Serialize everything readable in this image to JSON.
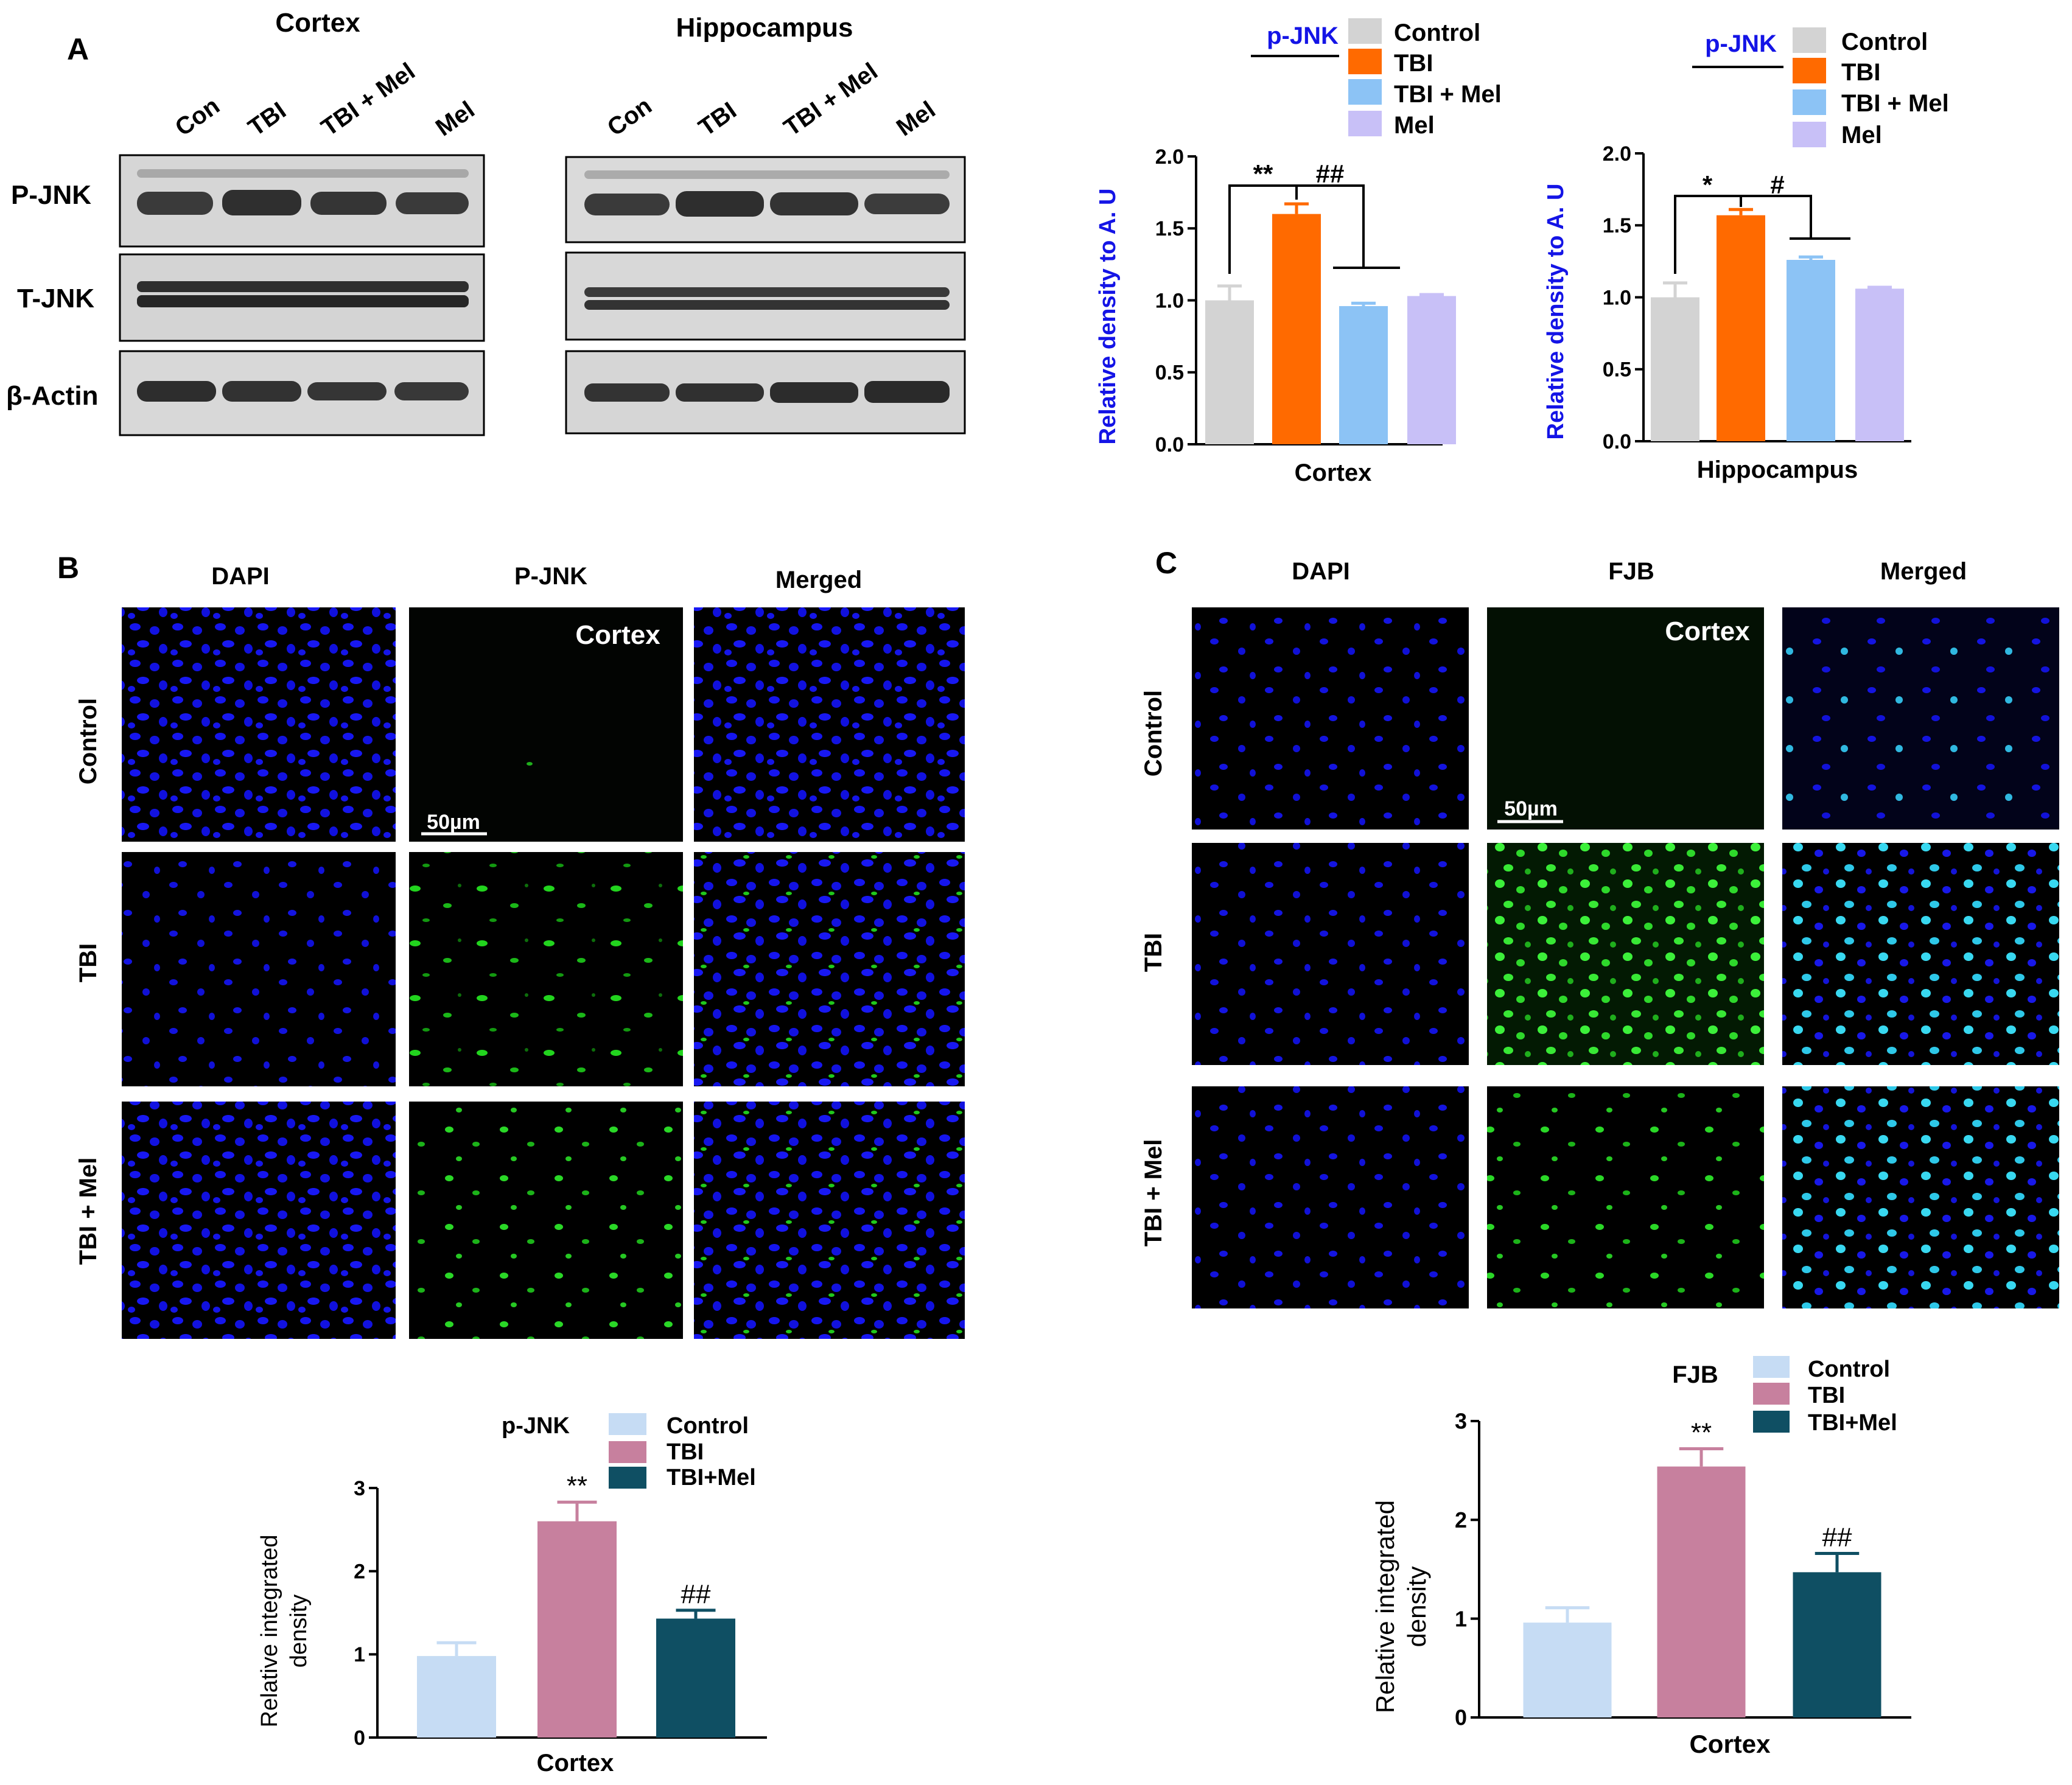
{
  "figure": {
    "panel_labels": {
      "a": "A",
      "b": "B",
      "c": "C"
    },
    "scale_bar": "50µm",
    "scale_bar_label_c": "50µm",
    "region_overlay": "Cortex"
  },
  "western": {
    "cortex_title": "Cortex",
    "hippocampus_title": "Hippocampus",
    "lanes": [
      "Con",
      "TBI",
      "TBI + Mel",
      "Mel"
    ],
    "rows": [
      "P-JNK",
      "T-JNK",
      "β-Actin"
    ]
  },
  "if_b": {
    "columns": [
      "DAPI",
      "P-JNK",
      "Merged"
    ],
    "rows": [
      "Control",
      "TBI",
      "TBI + Mel"
    ]
  },
  "if_c": {
    "columns": [
      "DAPI",
      "FJB",
      "Merged"
    ],
    "rows": [
      "Control",
      "TBI",
      "TBI + Mel"
    ]
  },
  "colors": {
    "control_a": "#d3d3d3",
    "tbi_a": "#ff6a00",
    "tbimel_a": "#8cc3f5",
    "mel_a": "#c8c0f7",
    "control_bc": "#c6dcf4",
    "tbi_bc": "#c7809e",
    "tbimel_bc": "#0f4f63",
    "axis_blue": "#1414e6"
  },
  "chart_data": [
    {
      "id": "a_cortex",
      "type": "bar",
      "legend_title": "p-JNK",
      "categories": [
        "Control",
        "TBI",
        "TBI + Mel",
        "Mel"
      ],
      "values": [
        1.0,
        1.6,
        0.96,
        1.03
      ],
      "errors": [
        0.1,
        0.07,
        0.02,
        0.01
      ],
      "xlabel": "Cortex",
      "ylabel": "Relative density to A. U",
      "ylim": [
        0,
        2.0
      ],
      "yticks": [
        "0.0",
        "0.5",
        "1.0",
        "1.5",
        "2.0"
      ],
      "annotations": [
        "**",
        "##"
      ]
    },
    {
      "id": "a_hippocampus",
      "type": "bar",
      "legend_title": "p-JNK",
      "categories": [
        "Control",
        "TBI",
        "TBI + Mel",
        "Mel"
      ],
      "values": [
        1.0,
        1.57,
        1.26,
        1.06
      ],
      "errors": [
        0.1,
        0.04,
        0.02,
        0.01
      ],
      "xlabel": "Hippocampus",
      "ylabel": "Relative density to A. U",
      "ylim": [
        0,
        2.0
      ],
      "yticks": [
        "0.0",
        "0.5",
        "1.0",
        "1.5",
        "2.0"
      ],
      "annotations": [
        "*",
        "#"
      ]
    },
    {
      "id": "b",
      "type": "bar",
      "legend_title": "p-JNK",
      "categories": [
        "Control",
        "TBI",
        "TBI+Mel"
      ],
      "values": [
        0.98,
        2.6,
        1.43
      ],
      "errors": [
        0.16,
        0.23,
        0.1
      ],
      "xlabel": "Cortex",
      "ylabel": "Relative integrated density",
      "ylim": [
        0,
        3
      ],
      "yticks": [
        "0",
        "1",
        "2",
        "3"
      ],
      "annotations": [
        "**",
        "##"
      ]
    },
    {
      "id": "c",
      "type": "bar",
      "legend_title": "FJB",
      "categories": [
        "Control",
        "TBI",
        "TBI+Mel"
      ],
      "values": [
        0.96,
        2.54,
        1.47
      ],
      "errors": [
        0.15,
        0.18,
        0.19
      ],
      "xlabel": "Cortex",
      "ylabel": "Relative integrated density",
      "ylim": [
        0,
        3
      ],
      "yticks": [
        "0",
        "1",
        "2",
        "3"
      ],
      "annotations": [
        "**",
        "##"
      ]
    }
  ]
}
